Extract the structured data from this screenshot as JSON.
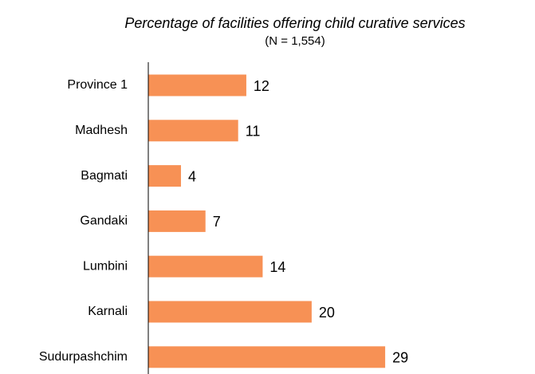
{
  "chart_data": {
    "type": "barh",
    "title": "Percentage of facilities offering child curative services",
    "subtitle": "(N = 1,554)",
    "categories": [
      "Province 1",
      "Madhesh",
      "Bagmati",
      "Gandaki",
      "Lumbini",
      "Karnali",
      "Sudurpashchim"
    ],
    "values": [
      12,
      11,
      4,
      7,
      14,
      20,
      29
    ],
    "color": "#f79155",
    "xlim": [
      0,
      45
    ]
  }
}
